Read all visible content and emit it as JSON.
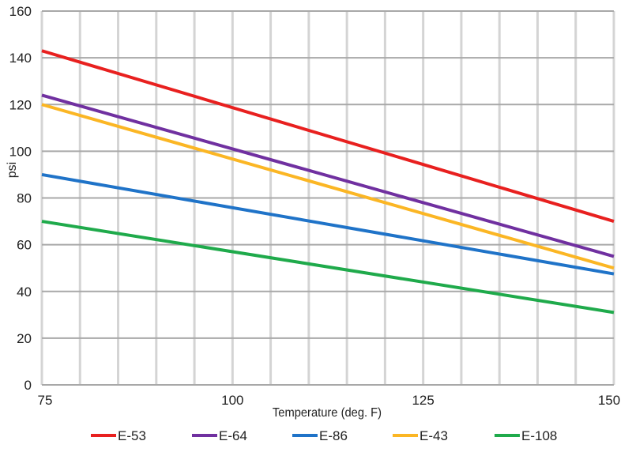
{
  "chart_data": {
    "type": "line",
    "title": "",
    "xlabel": "Temperature (deg. F)",
    "ylabel": "psi",
    "xlim": [
      75,
      150
    ],
    "ylim": [
      0,
      160
    ],
    "x_ticks": [
      75,
      100,
      125,
      150
    ],
    "y_ticks": [
      0,
      20,
      40,
      60,
      80,
      100,
      120,
      140,
      160
    ],
    "x_grid_step": 5,
    "grid": true,
    "legend_position": "bottom",
    "x": [
      75,
      150
    ],
    "series": [
      {
        "name": "E-53",
        "color": "#e8201f",
        "values": [
          143,
          70
        ]
      },
      {
        "name": "E-64",
        "color": "#7030a0",
        "values": [
          124,
          55
        ]
      },
      {
        "name": "E-86",
        "color": "#1f73c8",
        "values": [
          90,
          47.5
        ]
      },
      {
        "name": "E-43",
        "color": "#fbb624",
        "values": [
          120,
          50
        ]
      },
      {
        "name": "E-108",
        "color": "#1faa4b",
        "values": [
          70,
          31
        ]
      }
    ]
  }
}
